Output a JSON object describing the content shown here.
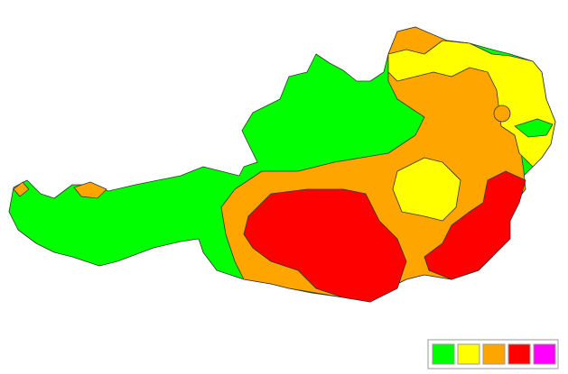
{
  "legend": {
    "colors": [
      "#00ff00",
      "#ffff00",
      "#ffa500",
      "#ff0000",
      "#ff00ff"
    ]
  }
}
